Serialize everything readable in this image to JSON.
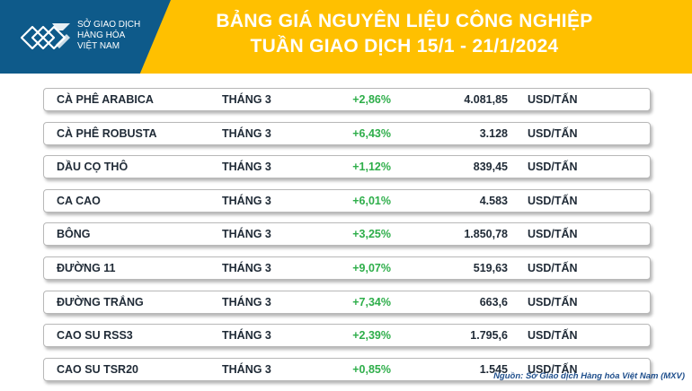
{
  "header": {
    "logo_lines": [
      "SỞ GIAO DỊCH",
      "HÀNG HÓA",
      "VIỆT NAM"
    ],
    "title_line1": "BẢNG GIÁ NGUYÊN LIỆU CÔNG NGHIỆP",
    "title_line2": "TUẦN GIAO DỊCH 15/1 - 21/1/2024"
  },
  "table": {
    "rows": [
      {
        "name": "CÀ PHÊ ARABICA",
        "month": "THÁNG 3",
        "change": "+2,86%",
        "price": "4.081,85",
        "unit": "USD/TẤN"
      },
      {
        "name": "CÀ PHÊ ROBUSTA",
        "month": "THÁNG 3",
        "change": "+6,43%",
        "price": "3.128",
        "unit": "USD/TẤN"
      },
      {
        "name": "DẦU CỌ THÔ",
        "month": "THÁNG 3",
        "change": "+1,12%",
        "price": "839,45",
        "unit": "USD/TẤN"
      },
      {
        "name": "CA CAO",
        "month": "THÁNG 3",
        "change": "+6,01%",
        "price": "4.583",
        "unit": "USD/TẤN"
      },
      {
        "name": "BÔNG",
        "month": "THÁNG 3",
        "change": "+3,25%",
        "price": "1.850,78",
        "unit": "USD/TẤN"
      },
      {
        "name": "ĐƯỜNG 11",
        "month": "THÁNG 3",
        "change": "+9,07%",
        "price": "519,63",
        "unit": "USD/TẤN"
      },
      {
        "name": "ĐƯỜNG TRẮNG",
        "month": "THÁNG 3",
        "change": "+7,34%",
        "price": "663,6",
        "unit": "USD/TẤN"
      },
      {
        "name": "CAO SU RSS3",
        "month": "THÁNG 3",
        "change": "+2,39%",
        "price": "1.795,6",
        "unit": "USD/TẤN"
      },
      {
        "name": "CAO SU TSR20",
        "month": "THÁNG 3",
        "change": "+0,85%",
        "price": "1.545",
        "unit": "USD/TẤN"
      }
    ]
  },
  "footer": {
    "source": "Nguồn: Sở Giao dịch Hàng hóa Việt Nam (MXV)"
  },
  "colors": {
    "header_yellow": "#ffc000",
    "header_blue": "#0e5a8a",
    "change_green": "#2eae4a"
  }
}
